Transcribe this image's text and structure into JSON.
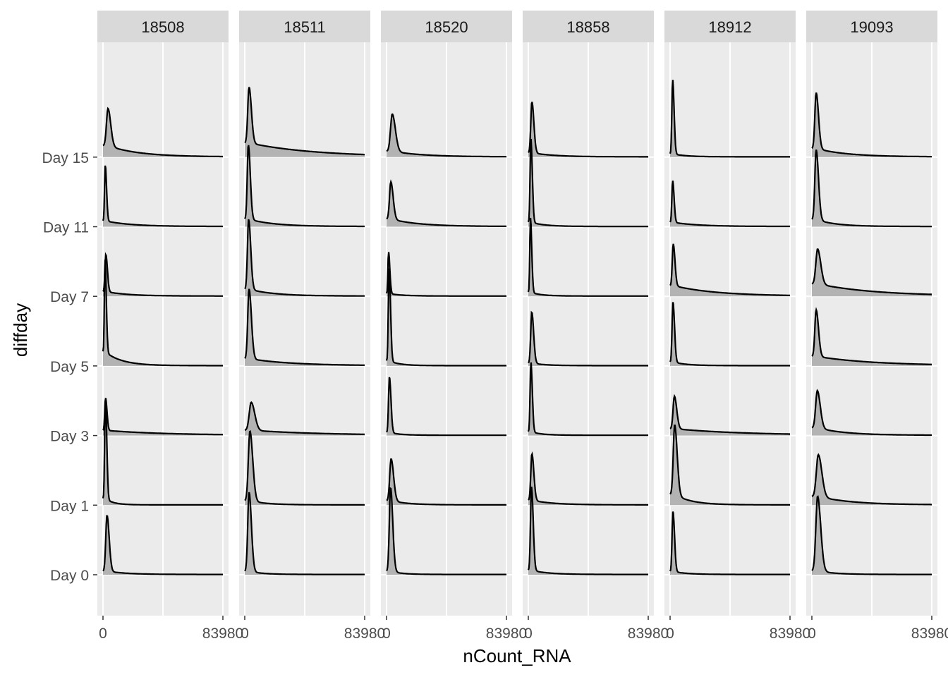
{
  "chart_data": {
    "type": "ridgeline-density",
    "xlabel": "nCount_RNA",
    "ylabel": "diffday",
    "x_tick_labels": [
      "0",
      "83980"
    ],
    "xlim": [
      0,
      83980
    ],
    "y_categories": [
      "Day 0",
      "Day 1",
      "Day 3",
      "Day 5",
      "Day 7",
      "Day 11",
      "Day 15"
    ],
    "facets": [
      "18508",
      "18511",
      "18520",
      "18858",
      "18912",
      "19093"
    ],
    "grid": true,
    "fill_color": "#b3b3b3",
    "line_color": "#000000",
    "panel_color": "#ebebeb",
    "strip_color": "#d9d9d9",
    "ridge_params_note_fields": [
      "peak_x",
      "peak_height",
      "tail_level",
      "tail_extent"
    ],
    "ridges": {
      "18508": {
        "Day 0": {
          "peak_x": 2800,
          "peak_height": 1.2,
          "tail_level": 0.06,
          "tail_extent": 14000
        },
        "Day 1": {
          "peak_x": 1700,
          "peak_height": 2.2,
          "tail_level": 0.06,
          "tail_extent": 6000
        },
        "Day 3": {
          "peak_x": 1800,
          "peak_height": 0.7,
          "tail_level": 0.15,
          "tail_extent": 42000
        },
        "Day 5": {
          "peak_x": 1400,
          "peak_height": 2.0,
          "tail_level": 0.15,
          "tail_extent": 12000
        },
        "Day 7": {
          "peak_x": 2000,
          "peak_height": 0.8,
          "tail_level": 0.12,
          "tail_extent": 16000
        },
        "Day 11": {
          "peak_x": 1600,
          "peak_height": 1.2,
          "tail_level": 0.1,
          "tail_extent": 18000
        },
        "Day 15": {
          "peak_x": 3500,
          "peak_height": 0.8,
          "tail_level": 0.3,
          "tail_extent": 22000
        }
      },
      "18511": {
        "Day 0": {
          "peak_x": 3000,
          "peak_height": 1.7,
          "tail_level": 0.04,
          "tail_extent": 10000
        },
        "Day 1": {
          "peak_x": 3600,
          "peak_height": 1.5,
          "tail_level": 0.06,
          "tail_extent": 12000
        },
        "Day 3": {
          "peak_x": 4500,
          "peak_height": 0.6,
          "tail_level": 0.18,
          "tail_extent": 48000
        },
        "Day 5": {
          "peak_x": 3000,
          "peak_height": 1.5,
          "tail_level": 0.1,
          "tail_extent": 30000
        },
        "Day 7": {
          "peak_x": 2700,
          "peak_height": 1.5,
          "tail_level": 0.1,
          "tail_extent": 18000
        },
        "Day 11": {
          "peak_x": 2500,
          "peak_height": 1.6,
          "tail_level": 0.1,
          "tail_extent": 18000
        },
        "Day 15": {
          "peak_x": 3000,
          "peak_height": 1.2,
          "tail_level": 0.25,
          "tail_extent": 45000
        }
      },
      "18520": {
        "Day 0": {
          "peak_x": 2800,
          "peak_height": 1.8,
          "tail_level": 0.04,
          "tail_extent": 8000
        },
        "Day 1": {
          "peak_x": 3200,
          "peak_height": 0.9,
          "tail_level": 0.1,
          "tail_extent": 12000
        },
        "Day 3": {
          "peak_x": 2000,
          "peak_height": 1.2,
          "tail_level": 0.05,
          "tail_extent": 8000
        },
        "Day 5": {
          "peak_x": 1800,
          "peak_height": 2.0,
          "tail_level": 0.05,
          "tail_extent": 8000
        },
        "Day 7": {
          "peak_x": 1400,
          "peak_height": 0.9,
          "tail_level": 0.06,
          "tail_extent": 10000
        },
        "Day 11": {
          "peak_x": 3000,
          "peak_height": 0.8,
          "tail_level": 0.2,
          "tail_extent": 20000
        },
        "Day 15": {
          "peak_x": 4000,
          "peak_height": 0.8,
          "tail_level": 0.15,
          "tail_extent": 22000
        }
      },
      "18858": {
        "Day 0": {
          "peak_x": 2200,
          "peak_height": 1.8,
          "tail_level": 0.05,
          "tail_extent": 12000
        },
        "Day 1": {
          "peak_x": 2500,
          "peak_height": 1.0,
          "tail_level": 0.1,
          "tail_extent": 15000
        },
        "Day 3": {
          "peak_x": 1800,
          "peak_height": 1.5,
          "tail_level": 0.05,
          "tail_extent": 8000
        },
        "Day 5": {
          "peak_x": 2400,
          "peak_height": 1.1,
          "tail_level": 0.05,
          "tail_extent": 10000
        },
        "Day 7": {
          "peak_x": 1500,
          "peak_height": 1.6,
          "tail_level": 0.05,
          "tail_extent": 8000
        },
        "Day 11": {
          "peak_x": 1800,
          "peak_height": 1.8,
          "tail_level": 0.05,
          "tail_extent": 10000
        },
        "Day 15": {
          "peak_x": 2500,
          "peak_height": 1.1,
          "tail_level": 0.08,
          "tail_extent": 16000
        }
      },
      "18912": {
        "Day 0": {
          "peak_x": 2000,
          "peak_height": 1.3,
          "tail_level": 0.05,
          "tail_extent": 10000
        },
        "Day 1": {
          "peak_x": 3200,
          "peak_height": 1.5,
          "tail_level": 0.15,
          "tail_extent": 12000
        },
        "Day 3": {
          "peak_x": 3000,
          "peak_height": 0.7,
          "tail_level": 0.2,
          "tail_extent": 48000
        },
        "Day 5": {
          "peak_x": 2000,
          "peak_height": 1.3,
          "tail_level": 0.06,
          "tail_extent": 10000
        },
        "Day 7": {
          "peak_x": 2200,
          "peak_height": 0.9,
          "tail_level": 0.25,
          "tail_extent": 30000
        },
        "Day 11": {
          "peak_x": 1800,
          "peak_height": 0.9,
          "tail_level": 0.1,
          "tail_extent": 18000
        },
        "Day 15": {
          "peak_x": 1800,
          "peak_height": 1.6,
          "tail_level": 0.04,
          "tail_extent": 10000
        }
      },
      "19093": {
        "Day 0": {
          "peak_x": 4000,
          "peak_height": 1.6,
          "tail_level": 0.05,
          "tail_extent": 12000
        },
        "Day 1": {
          "peak_x": 4500,
          "peak_height": 0.9,
          "tail_level": 0.2,
          "tail_extent": 24000
        },
        "Day 3": {
          "peak_x": 3800,
          "peak_height": 0.8,
          "tail_level": 0.2,
          "tail_extent": 20000
        },
        "Day 5": {
          "peak_x": 3000,
          "peak_height": 1.0,
          "tail_level": 0.2,
          "tail_extent": 40000
        },
        "Day 7": {
          "peak_x": 4000,
          "peak_height": 0.75,
          "tail_level": 0.35,
          "tail_extent": 40000
        },
        "Day 11": {
          "peak_x": 3000,
          "peak_height": 1.5,
          "tail_level": 0.1,
          "tail_extent": 14000
        },
        "Day 15": {
          "peak_x": 3000,
          "peak_height": 1.2,
          "tail_level": 0.15,
          "tail_extent": 22000
        }
      }
    }
  }
}
